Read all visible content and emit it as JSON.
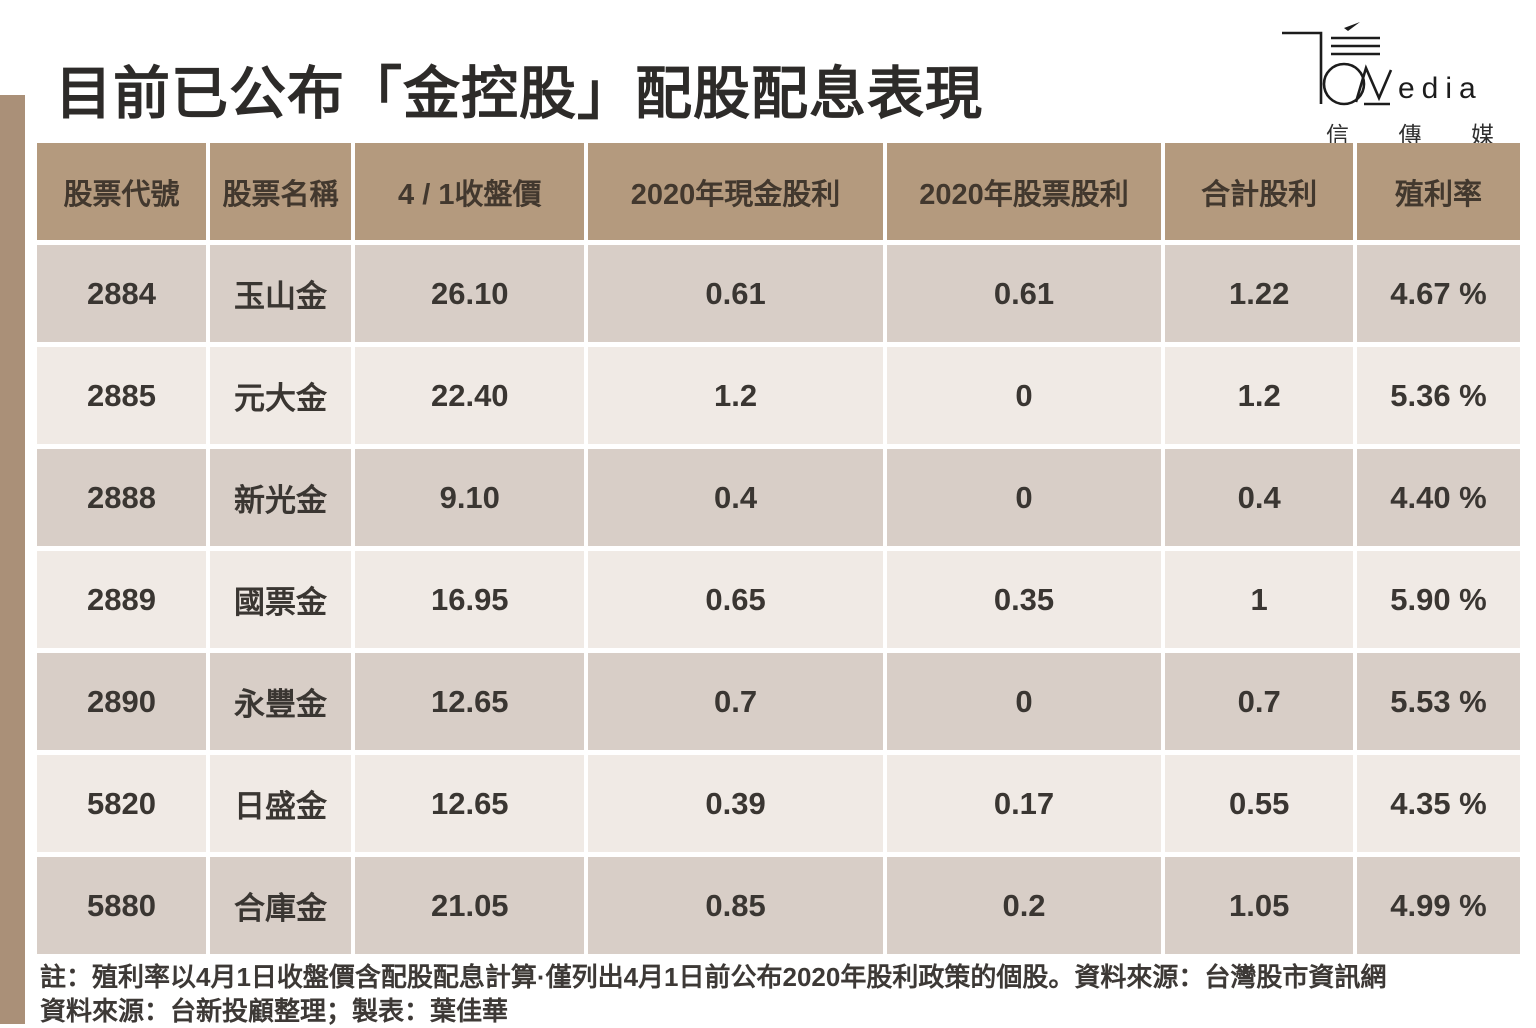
{
  "page": {
    "title": "目前已公布「金控股」配股配息表現",
    "accent_bar_color": "#aa9078"
  },
  "logo": {
    "latin_text": "edia",
    "cjk_name": "信傳媒",
    "chars": [
      "信",
      "傳",
      "媒"
    ]
  },
  "table": {
    "columns": [
      "股票代號",
      "股票名稱",
      "4 / 1收盤價",
      "2020年現金股利",
      "2020年股票股利",
      "合計股利",
      "殖利率"
    ],
    "rows": [
      [
        "2884",
        "玉山金",
        "26.10",
        "0.61",
        "0.61",
        "1.22",
        "4.67 %"
      ],
      [
        "2885",
        "元大金",
        "22.40",
        "1.2",
        "0",
        "1.2",
        "5.36 %"
      ],
      [
        "2888",
        "新光金",
        "9.10",
        "0.4",
        "0",
        "0.4",
        "4.40 %"
      ],
      [
        "2889",
        "國票金",
        "16.95",
        "0.65",
        "0.35",
        "1",
        "5.90 %"
      ],
      [
        "2890",
        "永豐金",
        "12.65",
        "0.7",
        "0",
        "0.7",
        "5.53 %"
      ],
      [
        "5820",
        "日盛金",
        "12.65",
        "0.39",
        "0.17",
        "0.55",
        "4.35 %"
      ],
      [
        "5880",
        "合庫金",
        "21.05",
        "0.85",
        "0.2",
        "1.05",
        "4.99 %"
      ]
    ],
    "colors": {
      "header_bg": "#b49a7e",
      "row_odd_bg": "#d8cec7",
      "row_even_bg": "#f0eae5",
      "header_text": "#42382e",
      "cell_text": "#3a3632"
    }
  },
  "footnotes": {
    "line1": "註：殖利率以4月1日收盤價含配股配息計算·僅列出4月1日前公布2020年股利政策的個股。資料來源：台灣股市資訊網",
    "line2": "資料來源：台新投顧整理；製表：葉佳華"
  },
  "chart_data": {
    "type": "table",
    "title": "目前已公布「金控股」配股配息表現",
    "columns": [
      "股票代號",
      "股票名稱",
      "4 / 1收盤價",
      "2020年現金股利",
      "2020年股票股利",
      "合計股利",
      "殖利率"
    ],
    "rows": [
      {
        "code": "2884",
        "name": "玉山金",
        "close_price_0401": 26.1,
        "cash_dividend_2020": 0.61,
        "stock_dividend_2020": 0.61,
        "total_dividend": 1.22,
        "yield_pct": 4.67
      },
      {
        "code": "2885",
        "name": "元大金",
        "close_price_0401": 22.4,
        "cash_dividend_2020": 1.2,
        "stock_dividend_2020": 0,
        "total_dividend": 1.2,
        "yield_pct": 5.36
      },
      {
        "code": "2888",
        "name": "新光金",
        "close_price_0401": 9.1,
        "cash_dividend_2020": 0.4,
        "stock_dividend_2020": 0,
        "total_dividend": 0.4,
        "yield_pct": 4.4
      },
      {
        "code": "2889",
        "name": "國票金",
        "close_price_0401": 16.95,
        "cash_dividend_2020": 0.65,
        "stock_dividend_2020": 0.35,
        "total_dividend": 1,
        "yield_pct": 5.9
      },
      {
        "code": "2890",
        "name": "永豐金",
        "close_price_0401": 12.65,
        "cash_dividend_2020": 0.7,
        "stock_dividend_2020": 0,
        "total_dividend": 0.7,
        "yield_pct": 5.53
      },
      {
        "code": "5820",
        "name": "日盛金",
        "close_price_0401": 12.65,
        "cash_dividend_2020": 0.39,
        "stock_dividend_2020": 0.17,
        "total_dividend": 0.55,
        "yield_pct": 4.35
      },
      {
        "code": "5880",
        "name": "合庫金",
        "close_price_0401": 21.05,
        "cash_dividend_2020": 0.85,
        "stock_dividend_2020": 0.2,
        "total_dividend": 1.05,
        "yield_pct": 4.99
      }
    ],
    "notes": [
      "註：殖利率以4月1日收盤價含配股配息計算·僅列出4月1日前公布2020年股利政策的個股。資料來源：台灣股市資訊網",
      "資料來源：台新投顧整理；製表：葉佳華"
    ]
  }
}
